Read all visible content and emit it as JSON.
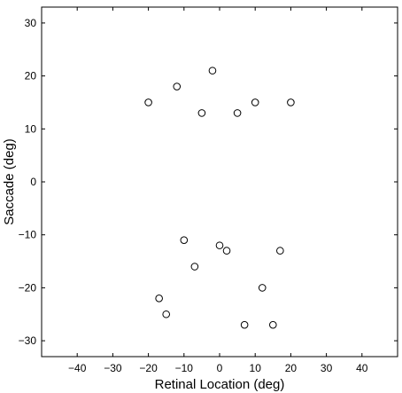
{
  "chart_data": {
    "type": "scatter",
    "title": "",
    "xlabel": "Retinal Location (deg)",
    "ylabel": "Saccade (deg)",
    "xlim": [
      -50,
      50
    ],
    "ylim": [
      -33,
      33
    ],
    "xticks": [
      -40,
      -30,
      -20,
      -10,
      0,
      10,
      20,
      30,
      40
    ],
    "yticks": [
      -30,
      -20,
      -10,
      0,
      10,
      20,
      30
    ],
    "marker": "open-circle",
    "marker_color": "#000000",
    "grid": false,
    "legend": "none",
    "points": [
      {
        "x": -2,
        "y": 21
      },
      {
        "x": -12,
        "y": 18
      },
      {
        "x": -20,
        "y": 15
      },
      {
        "x": -5,
        "y": 13
      },
      {
        "x": 5,
        "y": 13
      },
      {
        "x": 10,
        "y": 15
      },
      {
        "x": 20,
        "y": 15
      },
      {
        "x": -10,
        "y": -11
      },
      {
        "x": 0,
        "y": -12
      },
      {
        "x": 2,
        "y": -13
      },
      {
        "x": 17,
        "y": -13
      },
      {
        "x": -7,
        "y": -16
      },
      {
        "x": 12,
        "y": -20
      },
      {
        "x": -17,
        "y": -22
      },
      {
        "x": -15,
        "y": -25
      },
      {
        "x": 7,
        "y": -27
      },
      {
        "x": 15,
        "y": -27
      }
    ]
  }
}
